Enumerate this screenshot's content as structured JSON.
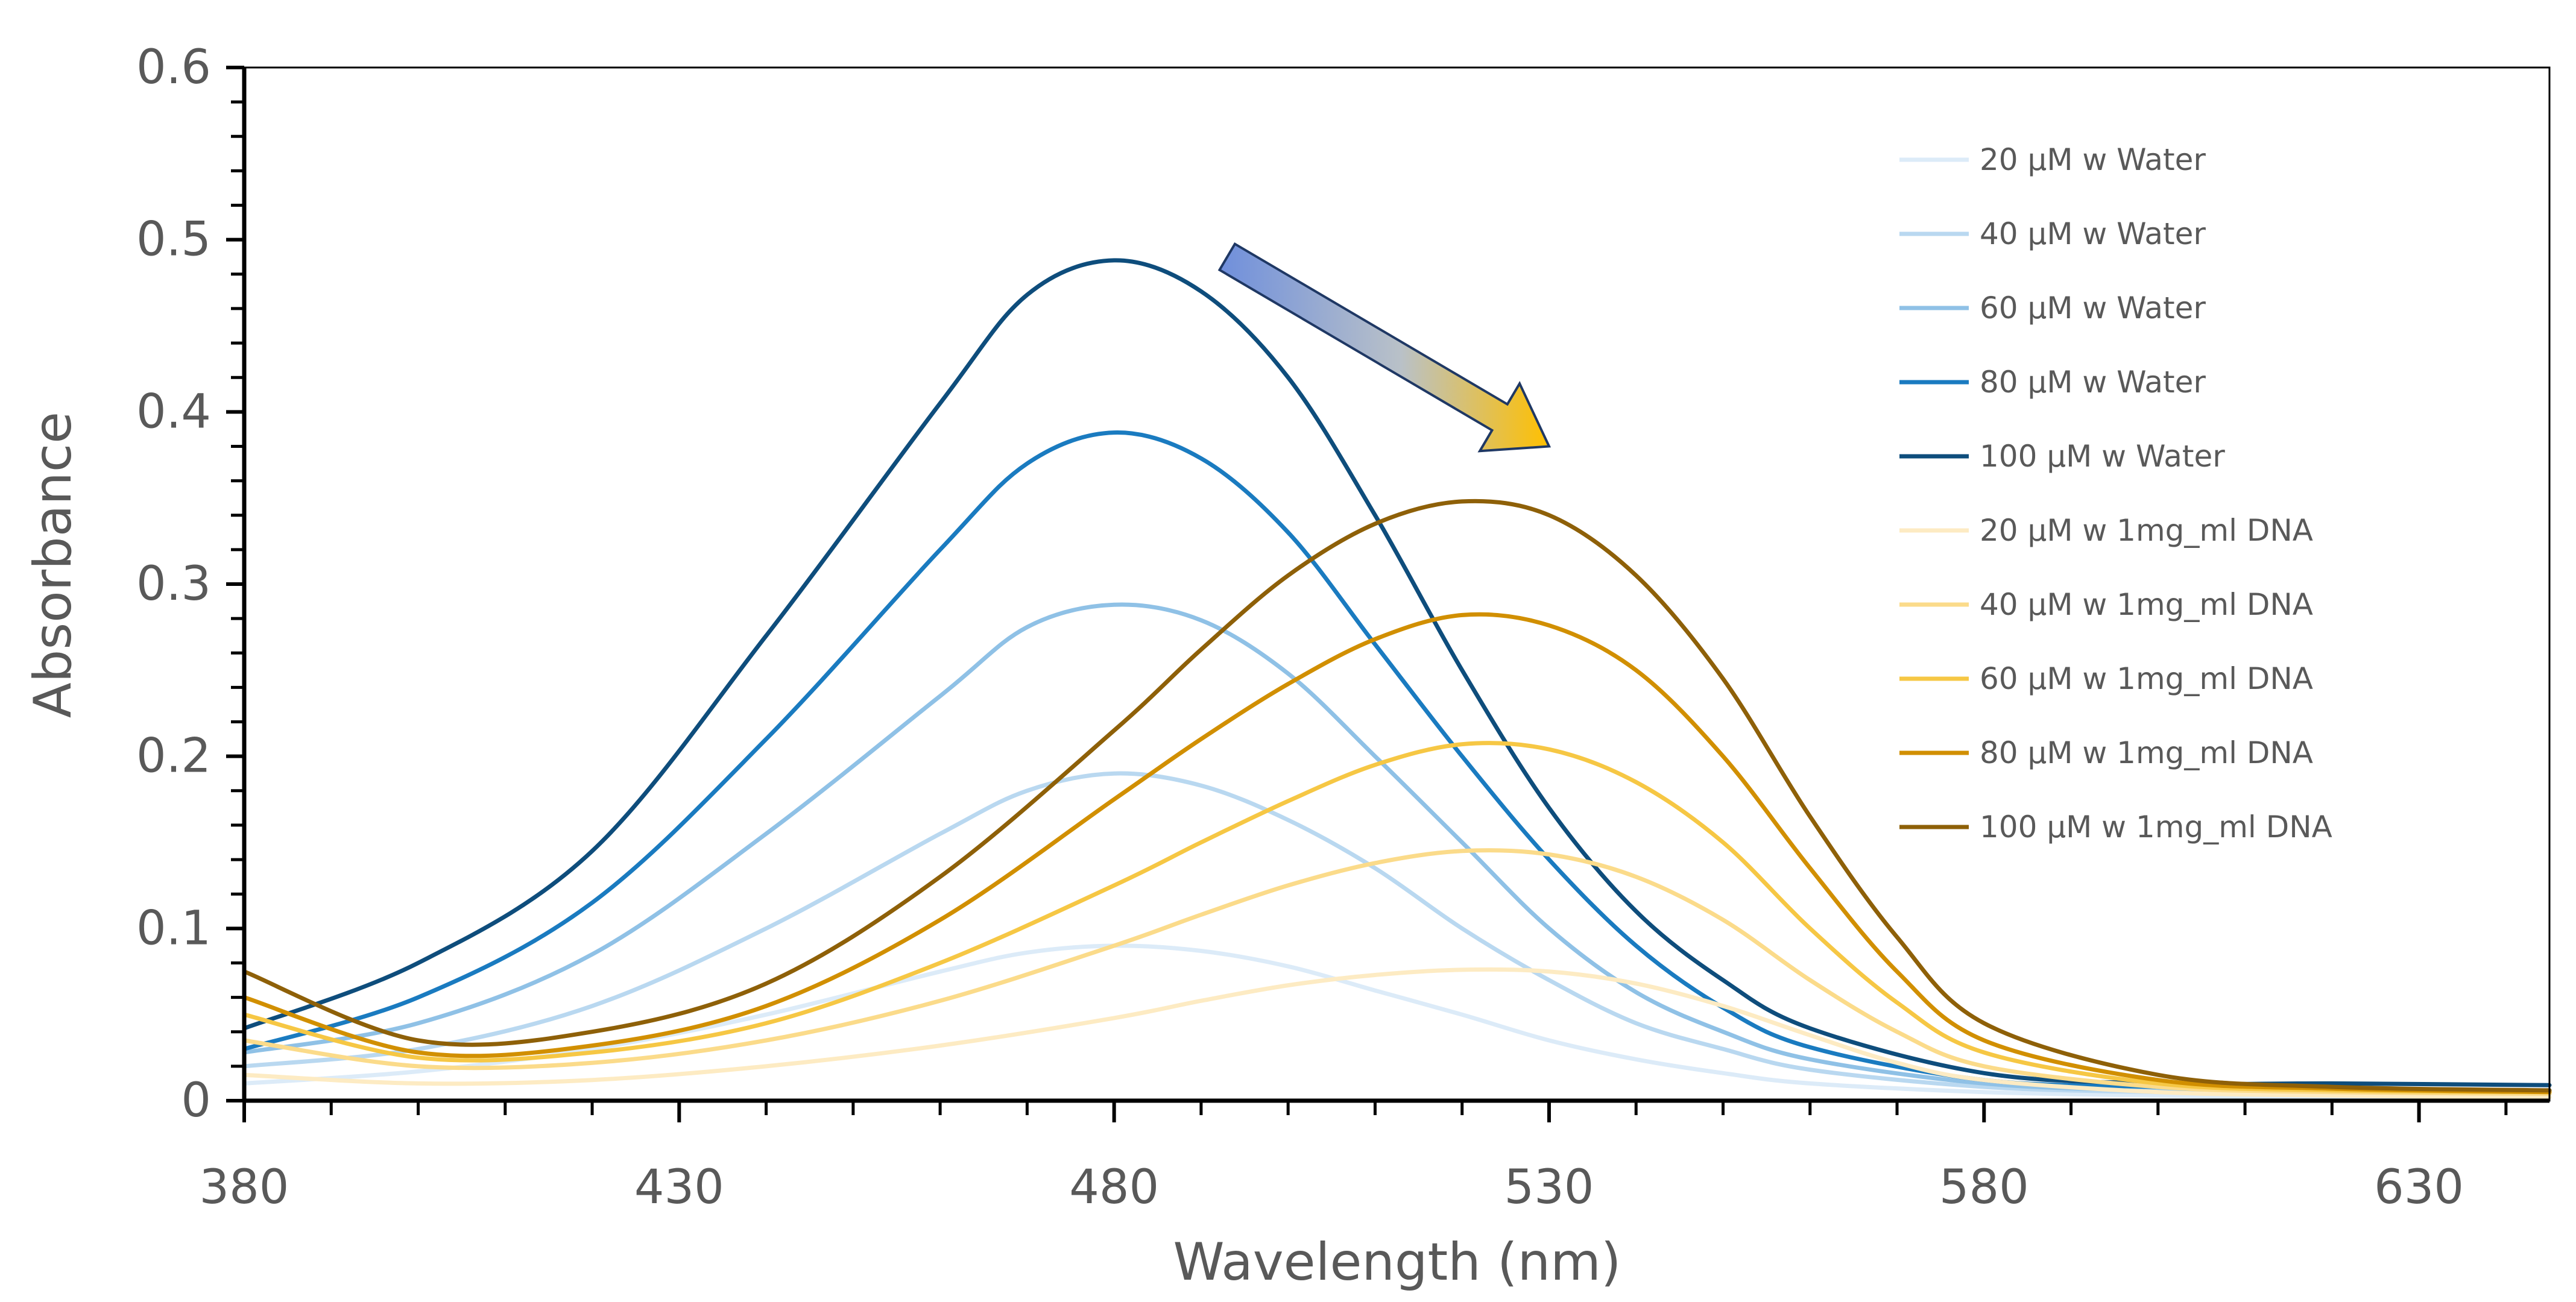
{
  "chart_data": {
    "type": "line",
    "title": "",
    "xlabel": "Wavelength (nm)",
    "ylabel": "Absorbance",
    "xlim": [
      380,
      645
    ],
    "ylim": [
      0,
      0.6
    ],
    "x_ticks": [
      380,
      430,
      480,
      530,
      580,
      630
    ],
    "y_ticks": [
      0,
      0.1,
      0.2,
      0.3,
      0.4,
      0.5,
      0.6
    ],
    "y_tick_labels": [
      "0",
      "0.1",
      "0.2",
      "0.3",
      "0.4",
      "0.5",
      "0.6"
    ],
    "x_tick_labels": [
      "380",
      "430",
      "480",
      "530",
      "580",
      "630"
    ],
    "grid": false,
    "legend_position": "top-right",
    "annotation": {
      "type": "arrow",
      "description": "red shift",
      "from": [
        493,
        0.49
      ],
      "to": [
        530,
        0.38
      ],
      "gradient": [
        "#6f8fdc",
        "#ffc000"
      ]
    },
    "series": [
      {
        "name": "20 µM w Water",
        "color": "#dcebf8",
        "x": [
          380,
          400,
          420,
          440,
          460,
          470,
          480,
          490,
          500,
          510,
          520,
          530,
          540,
          550,
          560,
          580,
          600,
          620,
          645
        ],
        "y": [
          0.01,
          0.017,
          0.03,
          0.05,
          0.075,
          0.086,
          0.09,
          0.087,
          0.078,
          0.064,
          0.05,
          0.035,
          0.024,
          0.016,
          0.01,
          0.005,
          0.003,
          0.002,
          0.002
        ]
      },
      {
        "name": "40 µM w Water",
        "color": "#b9d8f0",
        "x": [
          380,
          400,
          420,
          440,
          460,
          470,
          480,
          490,
          500,
          510,
          520,
          530,
          540,
          550,
          560,
          580,
          600,
          620,
          645
        ],
        "y": [
          0.02,
          0.03,
          0.055,
          0.1,
          0.155,
          0.18,
          0.19,
          0.183,
          0.163,
          0.135,
          0.1,
          0.07,
          0.045,
          0.03,
          0.018,
          0.008,
          0.005,
          0.004,
          0.004
        ]
      },
      {
        "name": "60 µM w Water",
        "color": "#8fc1e6",
        "x": [
          380,
          400,
          420,
          440,
          460,
          470,
          480,
          490,
          500,
          510,
          520,
          530,
          540,
          550,
          560,
          580,
          600,
          620,
          645
        ],
        "y": [
          0.028,
          0.045,
          0.085,
          0.155,
          0.235,
          0.275,
          0.288,
          0.279,
          0.248,
          0.2,
          0.15,
          0.1,
          0.063,
          0.04,
          0.024,
          0.01,
          0.006,
          0.005,
          0.005
        ]
      },
      {
        "name": "80 µM w Water",
        "color": "#1a7bc0",
        "x": [
          380,
          400,
          420,
          440,
          460,
          470,
          480,
          490,
          500,
          510,
          520,
          530,
          540,
          550,
          560,
          580,
          600,
          620,
          645
        ],
        "y": [
          0.03,
          0.06,
          0.115,
          0.21,
          0.32,
          0.37,
          0.388,
          0.373,
          0.33,
          0.265,
          0.2,
          0.14,
          0.09,
          0.054,
          0.031,
          0.012,
          0.008,
          0.006,
          0.006
        ]
      },
      {
        "name": "100 µM w Water",
        "color": "#0e4d7c",
        "x": [
          380,
          400,
          420,
          440,
          460,
          470,
          480,
          490,
          500,
          510,
          520,
          530,
          540,
          550,
          560,
          580,
          600,
          620,
          645
        ],
        "y": [
          0.042,
          0.08,
          0.145,
          0.27,
          0.405,
          0.468,
          0.488,
          0.47,
          0.42,
          0.34,
          0.25,
          0.17,
          0.11,
          0.07,
          0.042,
          0.016,
          0.01,
          0.01,
          0.009
        ]
      },
      {
        "name": "20 µM w 1mg_ml DNA",
        "color": "#fdebc3",
        "x": [
          380,
          400,
          420,
          440,
          460,
          480,
          490,
          500,
          510,
          520,
          530,
          540,
          550,
          560,
          570,
          580,
          600,
          620,
          645
        ],
        "y": [
          0.015,
          0.01,
          0.012,
          0.02,
          0.032,
          0.048,
          0.058,
          0.067,
          0.073,
          0.076,
          0.075,
          0.068,
          0.055,
          0.038,
          0.022,
          0.012,
          0.005,
          0.003,
          0.002
        ]
      },
      {
        "name": "40 µM w 1mg_ml DNA",
        "color": "#fbdb8a",
        "x": [
          380,
          400,
          420,
          440,
          460,
          480,
          490,
          500,
          510,
          520,
          530,
          540,
          550,
          560,
          570,
          580,
          600,
          620,
          645
        ],
        "y": [
          0.035,
          0.02,
          0.022,
          0.035,
          0.058,
          0.09,
          0.108,
          0.125,
          0.138,
          0.145,
          0.143,
          0.13,
          0.105,
          0.07,
          0.04,
          0.02,
          0.008,
          0.005,
          0.004
        ]
      },
      {
        "name": "60 µM w 1mg_ml DNA",
        "color": "#f6c744",
        "x": [
          380,
          400,
          420,
          440,
          460,
          480,
          490,
          500,
          510,
          520,
          530,
          540,
          550,
          560,
          570,
          580,
          600,
          620,
          645
        ],
        "y": [
          0.05,
          0.025,
          0.028,
          0.045,
          0.08,
          0.125,
          0.15,
          0.174,
          0.195,
          0.207,
          0.204,
          0.185,
          0.15,
          0.1,
          0.057,
          0.028,
          0.01,
          0.006,
          0.005
        ]
      },
      {
        "name": "80 µM w 1mg_ml DNA",
        "color": "#d18f00",
        "x": [
          380,
          400,
          420,
          440,
          460,
          480,
          490,
          500,
          510,
          520,
          530,
          540,
          550,
          560,
          570,
          580,
          600,
          620,
          645
        ],
        "y": [
          0.06,
          0.028,
          0.032,
          0.055,
          0.105,
          0.175,
          0.21,
          0.242,
          0.268,
          0.282,
          0.276,
          0.25,
          0.2,
          0.135,
          0.075,
          0.035,
          0.012,
          0.007,
          0.005
        ]
      },
      {
        "name": "100 µM w 1mg_ml DNA",
        "color": "#8e6008",
        "x": [
          380,
          400,
          420,
          440,
          460,
          480,
          490,
          500,
          510,
          520,
          530,
          540,
          550,
          560,
          570,
          580,
          600,
          620,
          645
        ],
        "y": [
          0.075,
          0.035,
          0.04,
          0.068,
          0.13,
          0.215,
          0.262,
          0.305,
          0.335,
          0.348,
          0.34,
          0.305,
          0.245,
          0.165,
          0.095,
          0.045,
          0.015,
          0.008,
          0.006
        ]
      }
    ]
  }
}
